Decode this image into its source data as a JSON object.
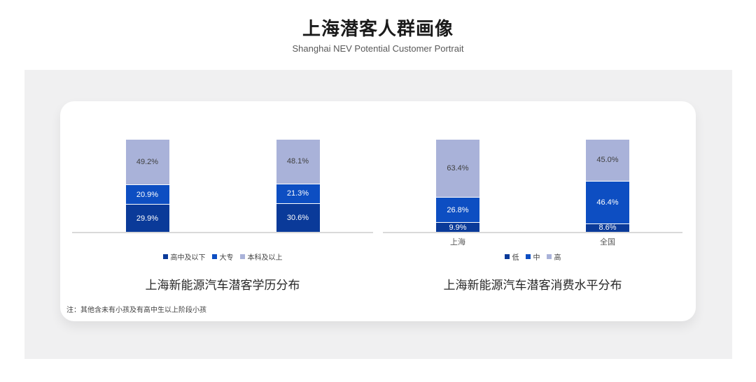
{
  "page": {
    "title": "上海潜客人群画像",
    "subtitle": "Shanghai NEV Potential Customer Portrait",
    "note": "注：其他含未有小孩及有高中生以上阶段小孩"
  },
  "colors": {
    "dark_blue": "#0a3a99",
    "blue": "#0d4ec2",
    "light_purple": "#a9b2d9",
    "axis_line": "#d9d9d9",
    "band_bg": "#f0f0f1",
    "card_bg": "#ffffff",
    "label_on_light": "#404040",
    "label_on_dark": "#ffffff"
  },
  "chart_data": [
    {
      "type": "bar",
      "stacked": true,
      "title": "上海新能源汽车潜客学历分布",
      "categories": [
        "",
        ""
      ],
      "series": [
        {
          "name": "高中及以下",
          "color_key": "dark_blue",
          "values": [
            29.9,
            30.6
          ]
        },
        {
          "name": "大专",
          "color_key": "blue",
          "values": [
            20.9,
            21.3
          ]
        },
        {
          "name": "本科及以上",
          "color_key": "light_purple",
          "values": [
            49.2,
            48.1
          ]
        }
      ],
      "value_suffix": "%",
      "ylim": [
        0,
        100
      ],
      "grid": false,
      "legend_position": "bottom"
    },
    {
      "type": "bar",
      "stacked": true,
      "title": "上海新能源汽车潜客消费水平分布",
      "categories": [
        "上海",
        "全国"
      ],
      "series": [
        {
          "name": "低",
          "color_key": "dark_blue",
          "values": [
            9.9,
            8.6
          ]
        },
        {
          "name": "中",
          "color_key": "blue",
          "values": [
            26.8,
            46.4
          ]
        },
        {
          "name": "高",
          "color_key": "light_purple",
          "values": [
            63.4,
            45.0
          ]
        }
      ],
      "value_suffix": "%",
      "ylim": [
        0,
        100
      ],
      "grid": false,
      "legend_position": "bottom"
    }
  ]
}
